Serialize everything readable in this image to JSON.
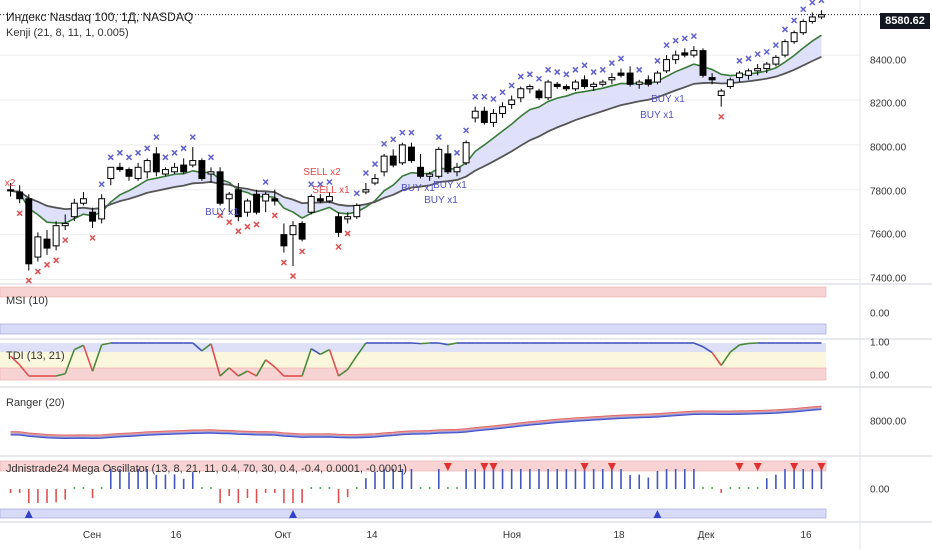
{
  "colors": {
    "sell": "#e04848",
    "buy": "#5050c0",
    "cross_upper": "#6060d0",
    "cross_lower": "#e05050",
    "band_fill": "#d8dcf8",
    "ma_fast": "#3a7a3a",
    "ma_slow": "#555555",
    "panel_red": "#f2b6b6",
    "panel_blue": "#c8ccf4",
    "price_tag_bg": "#131722"
  },
  "main": {
    "title": "Индекс Nasdaq 100, 1Д, NASDAQ",
    "indicator": "Kenji (21, 8, 11, 1, 0.005)",
    "price_tag": "8580.62",
    "y_ticks": [
      "8400.00",
      "8200.00",
      "8000.00",
      "7800.00",
      "7600.00",
      "7400.00"
    ],
    "signals": [
      {
        "text": "x2",
        "type": "sell"
      },
      {
        "text": "SELL x2",
        "type": "sell"
      },
      {
        "text": "SELL x1",
        "type": "sell"
      },
      {
        "text": "BUY x1",
        "type": "buy"
      },
      {
        "text": "BUY x1",
        "type": "buy"
      },
      {
        "text": "BUY x1",
        "type": "buy"
      },
      {
        "text": "BUY x1",
        "type": "buy"
      },
      {
        "text": "BUY x1",
        "type": "buy"
      },
      {
        "text": "BUY x1",
        "type": "buy"
      }
    ]
  },
  "msi": {
    "title": "MSI (10)",
    "ticks": [
      "0.00"
    ]
  },
  "tdi": {
    "title": "TDI (13, 21)",
    "ticks": [
      "1.00",
      "0.00"
    ]
  },
  "ranger": {
    "title": "Ranger (20)",
    "ticks": [
      "8000.00"
    ]
  },
  "mega": {
    "title": "Jdnistrade24 Mega Oscillator (13, 8, 21, 11, 0.4, 70, 30, 0.4, -0.4, 0.0001, -0.0001)",
    "ticks": [
      "0.00"
    ]
  },
  "x_axis": [
    "Сен",
    "16",
    "Окт",
    "14",
    "Ноя",
    "18",
    "Дек",
    "16"
  ],
  "chart_data": {
    "type": "candlestick",
    "candles": [
      {
        "o": 7800,
        "h": 7830,
        "l": 7770,
        "c": 7795
      },
      {
        "o": 7790,
        "h": 7820,
        "l": 7740,
        "c": 7760
      },
      {
        "o": 7760,
        "h": 7780,
        "l": 7440,
        "c": 7470
      },
      {
        "o": 7500,
        "h": 7610,
        "l": 7480,
        "c": 7590
      },
      {
        "o": 7580,
        "h": 7620,
        "l": 7510,
        "c": 7540
      },
      {
        "o": 7550,
        "h": 7660,
        "l": 7530,
        "c": 7640
      },
      {
        "o": 7640,
        "h": 7690,
        "l": 7620,
        "c": 7650
      },
      {
        "o": 7680,
        "h": 7760,
        "l": 7660,
        "c": 7740
      },
      {
        "o": 7740,
        "h": 7790,
        "l": 7730,
        "c": 7760
      },
      {
        "o": 7700,
        "h": 7720,
        "l": 7630,
        "c": 7660
      },
      {
        "o": 7670,
        "h": 7780,
        "l": 7650,
        "c": 7760
      },
      {
        "o": 7850,
        "h": 7900,
        "l": 7820,
        "c": 7900
      },
      {
        "o": 7900,
        "h": 7920,
        "l": 7880,
        "c": 7890
      },
      {
        "o": 7890,
        "h": 7900,
        "l": 7840,
        "c": 7860
      },
      {
        "o": 7850,
        "h": 7920,
        "l": 7840,
        "c": 7900
      },
      {
        "o": 7880,
        "h": 7940,
        "l": 7850,
        "c": 7930
      },
      {
        "o": 7960,
        "h": 7990,
        "l": 7860,
        "c": 7880
      },
      {
        "o": 7870,
        "h": 7900,
        "l": 7860,
        "c": 7890
      },
      {
        "o": 7880,
        "h": 7920,
        "l": 7870,
        "c": 7900
      },
      {
        "o": 7910,
        "h": 7940,
        "l": 7870,
        "c": 7880
      },
      {
        "o": 7910,
        "h": 7990,
        "l": 7900,
        "c": 7930
      },
      {
        "o": 7930,
        "h": 7940,
        "l": 7840,
        "c": 7850
      },
      {
        "o": 7870,
        "h": 7900,
        "l": 7830,
        "c": 7880
      },
      {
        "o": 7880,
        "h": 7900,
        "l": 7730,
        "c": 7740
      },
      {
        "o": 7760,
        "h": 7790,
        "l": 7700,
        "c": 7780
      },
      {
        "o": 7800,
        "h": 7830,
        "l": 7660,
        "c": 7680
      },
      {
        "o": 7700,
        "h": 7760,
        "l": 7680,
        "c": 7750
      },
      {
        "o": 7780,
        "h": 7800,
        "l": 7690,
        "c": 7700
      },
      {
        "o": 7750,
        "h": 7790,
        "l": 7700,
        "c": 7780
      },
      {
        "o": 7760,
        "h": 7800,
        "l": 7730,
        "c": 7750
      },
      {
        "o": 7600,
        "h": 7650,
        "l": 7520,
        "c": 7550
      },
      {
        "o": 7600,
        "h": 7660,
        "l": 7460,
        "c": 7640
      },
      {
        "o": 7650,
        "h": 7660,
        "l": 7570,
        "c": 7580
      },
      {
        "o": 7700,
        "h": 7780,
        "l": 7690,
        "c": 7770
      },
      {
        "o": 7760,
        "h": 7780,
        "l": 7740,
        "c": 7750
      },
      {
        "o": 7750,
        "h": 7790,
        "l": 7740,
        "c": 7770
      },
      {
        "o": 7680,
        "h": 7700,
        "l": 7590,
        "c": 7610
      },
      {
        "o": 7670,
        "h": 7700,
        "l": 7650,
        "c": 7680
      },
      {
        "o": 7680,
        "h": 7740,
        "l": 7670,
        "c": 7730
      },
      {
        "o": 7790,
        "h": 7830,
        "l": 7780,
        "c": 7800
      },
      {
        "o": 7830,
        "h": 7870,
        "l": 7820,
        "c": 7850
      },
      {
        "o": 7880,
        "h": 7960,
        "l": 7860,
        "c": 7950
      },
      {
        "o": 7950,
        "h": 7980,
        "l": 7900,
        "c": 7910
      },
      {
        "o": 7920,
        "h": 8010,
        "l": 7910,
        "c": 8000
      },
      {
        "o": 7990,
        "h": 8010,
        "l": 7920,
        "c": 7930
      },
      {
        "o": 7900,
        "h": 7960,
        "l": 7850,
        "c": 7860
      },
      {
        "o": 7860,
        "h": 7880,
        "l": 7840,
        "c": 7870
      },
      {
        "o": 7860,
        "h": 7990,
        "l": 7850,
        "c": 7980
      },
      {
        "o": 7960,
        "h": 8000,
        "l": 7870,
        "c": 7880
      },
      {
        "o": 7880,
        "h": 7920,
        "l": 7860,
        "c": 7900
      },
      {
        "o": 7920,
        "h": 8020,
        "l": 7910,
        "c": 8010
      },
      {
        "o": 8120,
        "h": 8170,
        "l": 8100,
        "c": 8150
      },
      {
        "o": 8150,
        "h": 8170,
        "l": 8090,
        "c": 8100
      },
      {
        "o": 8100,
        "h": 8160,
        "l": 8080,
        "c": 8140
      },
      {
        "o": 8140,
        "h": 8190,
        "l": 8120,
        "c": 8170
      },
      {
        "o": 8180,
        "h": 8220,
        "l": 8160,
        "c": 8200
      },
      {
        "o": 8210,
        "h": 8260,
        "l": 8190,
        "c": 8250
      },
      {
        "o": 8250,
        "h": 8270,
        "l": 8230,
        "c": 8260
      },
      {
        "o": 8240,
        "h": 8250,
        "l": 8200,
        "c": 8210
      },
      {
        "o": 8210,
        "h": 8290,
        "l": 8200,
        "c": 8280
      },
      {
        "o": 8270,
        "h": 8280,
        "l": 8250,
        "c": 8260
      },
      {
        "o": 8260,
        "h": 8270,
        "l": 8240,
        "c": 8250
      },
      {
        "o": 8250,
        "h": 8290,
        "l": 8240,
        "c": 8280
      },
      {
        "o": 8290,
        "h": 8310,
        "l": 8250,
        "c": 8260
      },
      {
        "o": 8260,
        "h": 8280,
        "l": 8240,
        "c": 8270
      },
      {
        "o": 8270,
        "h": 8290,
        "l": 8260,
        "c": 8280
      },
      {
        "o": 8290,
        "h": 8320,
        "l": 8270,
        "c": 8300
      },
      {
        "o": 8320,
        "h": 8340,
        "l": 8300,
        "c": 8310
      },
      {
        "o": 8320,
        "h": 8350,
        "l": 8260,
        "c": 8270
      },
      {
        "o": 8270,
        "h": 8290,
        "l": 8250,
        "c": 8280
      },
      {
        "o": 8290,
        "h": 8310,
        "l": 8260,
        "c": 8270
      },
      {
        "o": 8280,
        "h": 8330,
        "l": 8270,
        "c": 8320
      },
      {
        "o": 8330,
        "h": 8400,
        "l": 8320,
        "c": 8380
      },
      {
        "o": 8380,
        "h": 8420,
        "l": 8360,
        "c": 8400
      },
      {
        "o": 8410,
        "h": 8430,
        "l": 8390,
        "c": 8400
      },
      {
        "o": 8400,
        "h": 8440,
        "l": 8390,
        "c": 8420
      },
      {
        "o": 8420,
        "h": 8430,
        "l": 8300,
        "c": 8310
      },
      {
        "o": 8300,
        "h": 8320,
        "l": 8270,
        "c": 8290
      },
      {
        "o": 8220,
        "h": 8250,
        "l": 8170,
        "c": 8240
      },
      {
        "o": 8260,
        "h": 8300,
        "l": 8250,
        "c": 8290
      },
      {
        "o": 8300,
        "h": 8330,
        "l": 8280,
        "c": 8320
      },
      {
        "o": 8310,
        "h": 8340,
        "l": 8290,
        "c": 8330
      },
      {
        "o": 8330,
        "h": 8360,
        "l": 8310,
        "c": 8340
      },
      {
        "o": 8340,
        "h": 8370,
        "l": 8320,
        "c": 8360
      },
      {
        "o": 8360,
        "h": 8400,
        "l": 8350,
        "c": 8390
      },
      {
        "o": 8400,
        "h": 8470,
        "l": 8390,
        "c": 8460
      },
      {
        "o": 8460,
        "h": 8510,
        "l": 8450,
        "c": 8500
      },
      {
        "o": 8500,
        "h": 8560,
        "l": 8490,
        "c": 8550
      },
      {
        "o": 8550,
        "h": 8590,
        "l": 8540,
        "c": 8570
      },
      {
        "o": 8570,
        "h": 8600,
        "l": 8560,
        "c": 8580
      }
    ],
    "y_range": [
      7380,
      8610
    ],
    "last_price": 8580.62
  }
}
